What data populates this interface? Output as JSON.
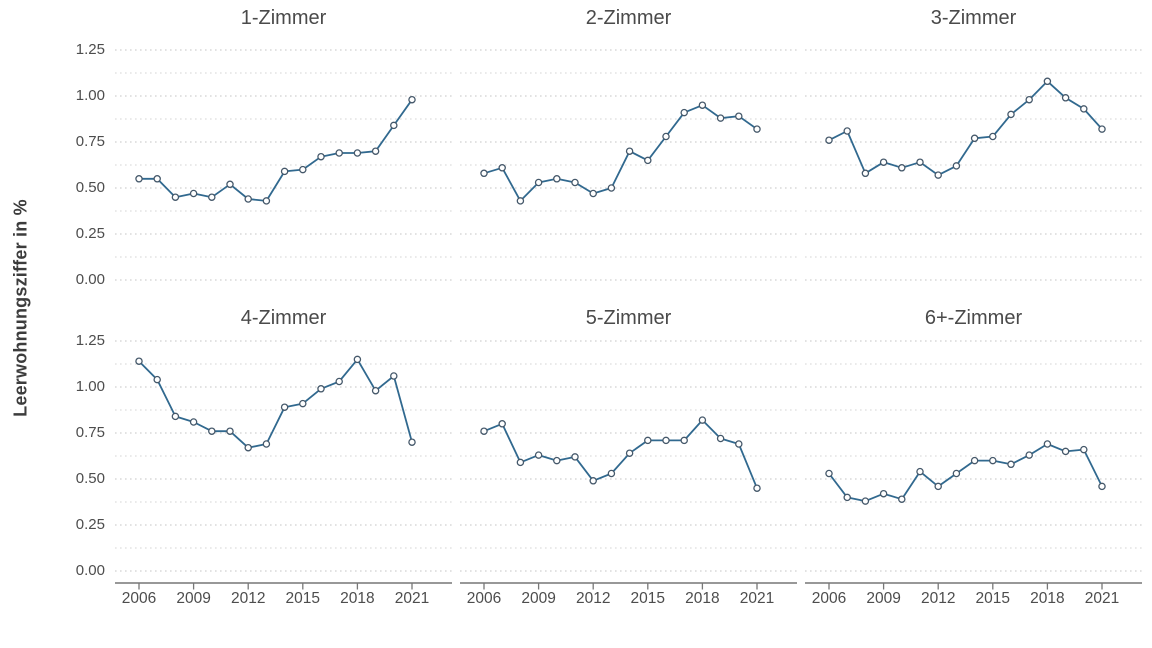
{
  "figure": {
    "y_axis_title": "Leerwohnungsziffer in %",
    "y_tick_labels": [
      "1.25",
      "1.00",
      "0.75",
      "0.50",
      "0.25",
      "0.00"
    ],
    "x_tick_labels": [
      "2006",
      "2009",
      "2012",
      "2015",
      "2018",
      "2021"
    ]
  },
  "colors": {
    "line": "#31698f",
    "marker_stroke": "#45586a",
    "marker_fill": "#ffffff",
    "grid_major": "#c6c6c6",
    "grid_minor": "#d4d4d4",
    "axis_line": "#777777",
    "tick_text": "#4d4d4d"
  },
  "chart_data": [
    {
      "type": "line",
      "title": "1-Zimmer",
      "x": [
        2006,
        2007,
        2008,
        2009,
        2010,
        2011,
        2012,
        2013,
        2014,
        2015,
        2016,
        2017,
        2018,
        2019,
        2020,
        2021
      ],
      "values": [
        0.55,
        0.55,
        0.45,
        0.47,
        0.45,
        0.52,
        0.44,
        0.43,
        0.59,
        0.6,
        0.67,
        0.69,
        0.69,
        0.7,
        0.84,
        0.98
      ],
      "xlabel": "",
      "ylabel": "Leerwohnungsziffer in %",
      "ylim": [
        0,
        1.25
      ],
      "yticks": [
        0.0,
        0.25,
        0.5,
        0.75,
        1.0,
        1.25
      ],
      "xticks": [
        2006,
        2009,
        2012,
        2015,
        2018,
        2021
      ],
      "grid": "horizontal-dotted",
      "legend": "none",
      "marker": "open-circle"
    },
    {
      "type": "line",
      "title": "2-Zimmer",
      "x": [
        2006,
        2007,
        2008,
        2009,
        2010,
        2011,
        2012,
        2013,
        2014,
        2015,
        2016,
        2017,
        2018,
        2019,
        2020,
        2021
      ],
      "values": [
        0.58,
        0.61,
        0.43,
        0.53,
        0.55,
        0.53,
        0.47,
        0.5,
        0.7,
        0.65,
        0.78,
        0.91,
        0.95,
        0.88,
        0.89,
        0.82
      ],
      "xlabel": "",
      "ylabel": "Leerwohnungsziffer in %",
      "ylim": [
        0,
        1.25
      ],
      "yticks": [
        0.0,
        0.25,
        0.5,
        0.75,
        1.0,
        1.25
      ],
      "xticks": [
        2006,
        2009,
        2012,
        2015,
        2018,
        2021
      ],
      "grid": "horizontal-dotted",
      "legend": "none",
      "marker": "open-circle"
    },
    {
      "type": "line",
      "title": "3-Zimmer",
      "x": [
        2006,
        2007,
        2008,
        2009,
        2010,
        2011,
        2012,
        2013,
        2014,
        2015,
        2016,
        2017,
        2018,
        2019,
        2020,
        2021
      ],
      "values": [
        0.76,
        0.81,
        0.58,
        0.64,
        0.61,
        0.64,
        0.57,
        0.62,
        0.77,
        0.78,
        0.9,
        0.98,
        1.08,
        0.99,
        0.93,
        0.82
      ],
      "xlabel": "",
      "ylabel": "Leerwohnungsziffer in %",
      "ylim": [
        0,
        1.25
      ],
      "yticks": [
        0.0,
        0.25,
        0.5,
        0.75,
        1.0,
        1.25
      ],
      "xticks": [
        2006,
        2009,
        2012,
        2015,
        2018,
        2021
      ],
      "grid": "horizontal-dotted",
      "legend": "none",
      "marker": "open-circle"
    },
    {
      "type": "line",
      "title": "4-Zimmer",
      "x": [
        2006,
        2007,
        2008,
        2009,
        2010,
        2011,
        2012,
        2013,
        2014,
        2015,
        2016,
        2017,
        2018,
        2019,
        2020,
        2021
      ],
      "values": [
        1.14,
        1.04,
        0.84,
        0.81,
        0.76,
        0.76,
        0.67,
        0.69,
        0.89,
        0.91,
        0.99,
        1.03,
        1.15,
        0.98,
        1.06,
        0.7
      ],
      "xlabel": "",
      "ylabel": "Leerwohnungsziffer in %",
      "ylim": [
        0,
        1.25
      ],
      "yticks": [
        0.0,
        0.25,
        0.5,
        0.75,
        1.0,
        1.25
      ],
      "xticks": [
        2006,
        2009,
        2012,
        2015,
        2018,
        2021
      ],
      "grid": "horizontal-dotted",
      "legend": "none",
      "marker": "open-circle"
    },
    {
      "type": "line",
      "title": "5-Zimmer",
      "x": [
        2006,
        2007,
        2008,
        2009,
        2010,
        2011,
        2012,
        2013,
        2014,
        2015,
        2016,
        2017,
        2018,
        2019,
        2020,
        2021
      ],
      "values": [
        0.76,
        0.8,
        0.59,
        0.63,
        0.6,
        0.62,
        0.49,
        0.53,
        0.64,
        0.71,
        0.71,
        0.71,
        0.82,
        0.72,
        0.69,
        0.45
      ],
      "xlabel": "",
      "ylabel": "Leerwohnungsziffer in %",
      "ylim": [
        0,
        1.25
      ],
      "yticks": [
        0.0,
        0.25,
        0.5,
        0.75,
        1.0,
        1.25
      ],
      "xticks": [
        2006,
        2009,
        2012,
        2015,
        2018,
        2021
      ],
      "grid": "horizontal-dotted",
      "legend": "none",
      "marker": "open-circle"
    },
    {
      "type": "line",
      "title": "6+-Zimmer",
      "x": [
        2006,
        2007,
        2008,
        2009,
        2010,
        2011,
        2012,
        2013,
        2014,
        2015,
        2016,
        2017,
        2018,
        2019,
        2020,
        2021
      ],
      "values": [
        0.53,
        0.4,
        0.38,
        0.42,
        0.39,
        0.54,
        0.46,
        0.53,
        0.6,
        0.6,
        0.58,
        0.63,
        0.69,
        0.65,
        0.66,
        0.46
      ],
      "xlabel": "",
      "ylabel": "Leerwohnungsziffer in %",
      "ylim": [
        0,
        1.25
      ],
      "yticks": [
        0.0,
        0.25,
        0.5,
        0.75,
        1.0,
        1.25
      ],
      "xticks": [
        2006,
        2009,
        2012,
        2015,
        2018,
        2021
      ],
      "grid": "horizontal-dotted",
      "legend": "none",
      "marker": "open-circle"
    }
  ]
}
